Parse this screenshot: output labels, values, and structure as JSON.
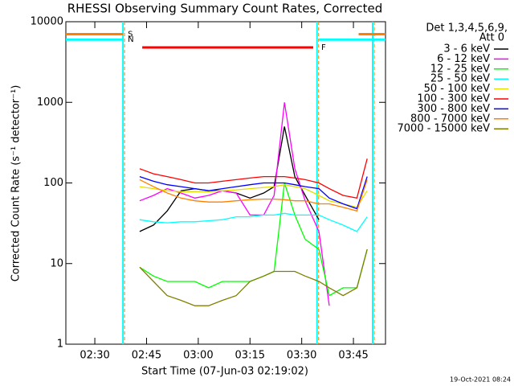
{
  "chart_data": {
    "type": "line",
    "title": "RHESSI Observing Summary Count Rates, Corrected",
    "x_label": "Start Time (07-Jun-03 02:19:02)",
    "y_label": "Corrected Count Rate (s⁻¹ detector⁻¹)",
    "footer": "19-Oct-2021 08:24",
    "legend_title": [
      "Det 1,3,4,5,6,9,",
      "Att 0"
    ],
    "legend_position": "upper right",
    "y_log": true,
    "xlim": [
      "02:21:36",
      "03:54:18"
    ],
    "xticks": [
      "02:30",
      "02:45",
      "03:00",
      "03:15",
      "03:30",
      "03:45"
    ],
    "ylim": [
      1,
      10000
    ],
    "yticks": [
      1,
      10,
      100,
      1000,
      10000
    ],
    "x": [
      "02:43",
      "02:47",
      "02:51",
      "02:55",
      "02:59",
      "03:03",
      "03:07",
      "03:11",
      "03:15",
      "03:19",
      "03:22",
      "03:25",
      "03:28",
      "03:31",
      "03:35",
      "03:38",
      "03:42",
      "03:46",
      "03:49"
    ],
    "series": [
      {
        "name": "3 - 6 keV",
        "color": "#000000",
        "values": [
          25,
          30,
          45,
          80,
          85,
          80,
          80,
          75,
          65,
          75,
          90,
          500,
          120,
          70,
          35,
          null,
          null,
          null,
          null
        ]
      },
      {
        "name": "6 - 12 keV",
        "color": "#ff00ff",
        "values": [
          60,
          70,
          85,
          75,
          65,
          70,
          80,
          75,
          40,
          40,
          70,
          1000,
          150,
          60,
          25,
          3,
          null,
          null,
          null
        ]
      },
      {
        "name": "12 - 25 keV",
        "color": "#00ff00",
        "values": [
          9,
          7,
          6,
          6,
          6,
          5,
          6,
          6,
          6,
          7,
          8,
          100,
          40,
          20,
          15,
          4,
          5,
          5,
          15
        ]
      },
      {
        "name": "25 - 50 keV",
        "color": "#00ffff",
        "values": [
          35,
          33,
          32,
          33,
          33,
          34,
          35,
          38,
          38,
          40,
          40,
          42,
          40,
          40,
          40,
          35,
          30,
          25,
          38
        ]
      },
      {
        "name": "50 - 100 keV",
        "color": "#e0e000",
        "values": [
          90,
          85,
          80,
          78,
          78,
          78,
          80,
          82,
          85,
          88,
          90,
          95,
          90,
          85,
          70,
          60,
          55,
          50,
          80
        ]
      },
      {
        "name": "100 - 300 keV",
        "color": "#ff0000",
        "values": [
          150,
          130,
          120,
          110,
          100,
          100,
          105,
          110,
          115,
          120,
          120,
          120,
          115,
          110,
          100,
          85,
          70,
          65,
          200
        ]
      },
      {
        "name": "300 - 800 keV",
        "color": "#0000ff",
        "values": [
          120,
          105,
          95,
          90,
          85,
          80,
          85,
          90,
          95,
          100,
          100,
          100,
          95,
          90,
          85,
          65,
          55,
          48,
          120
        ]
      },
      {
        "name": "800 - 7000 keV",
        "color": "#ff8000",
        "values": [
          110,
          90,
          75,
          65,
          60,
          58,
          58,
          60,
          62,
          63,
          63,
          62,
          60,
          60,
          55,
          55,
          50,
          45,
          110
        ]
      },
      {
        "name": "7000 - 15000 keV",
        "color": "#808000",
        "values": [
          9,
          6,
          4,
          3.5,
          3,
          3,
          3.5,
          4,
          6,
          7,
          8,
          8,
          8,
          7,
          6,
          5,
          4,
          5,
          15
        ]
      }
    ],
    "flags": [
      {
        "name": "S",
        "color": "#ff8000",
        "level": 7000,
        "intervals": [
          [
            "02:21:36",
            "02:38:10"
          ],
          [
            "03:46:30",
            "03:54:18"
          ]
        ]
      },
      {
        "name": "N",
        "color": "#00ffff",
        "level": 6000,
        "intervals": [
          [
            "02:21:36",
            "02:38:10"
          ],
          [
            "03:35:00",
            "03:54:18"
          ]
        ]
      },
      {
        "name": "F",
        "color": "#ff0000",
        "level": 4800,
        "intervals": [
          [
            "02:43:45",
            "03:33:20"
          ]
        ]
      }
    ],
    "event_lines": {
      "color": "#00ffff",
      "times": [
        "02:38:10",
        "03:34:26",
        "03:50:35"
      ]
    }
  }
}
